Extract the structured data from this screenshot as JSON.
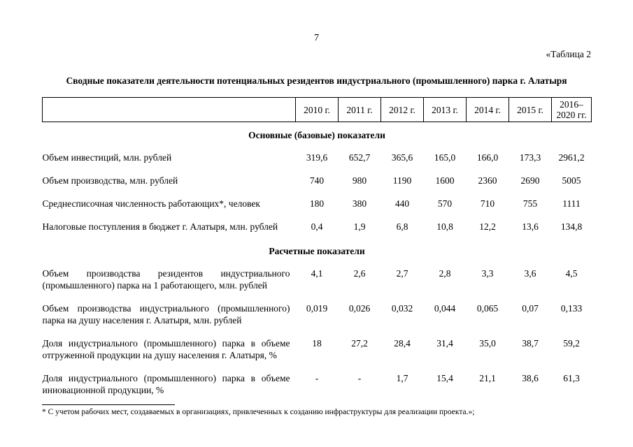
{
  "page": {
    "number": "7",
    "table_ref": "«Таблица 2",
    "title": "Сводные показатели деятельности потенциальных резидентов индустриального (промышленного) парка г. Алатыря",
    "footnote": "* С учетом рабочих мест, создаваемых в организациях, привлеченных к созданию инфраструктуры для реализации проекта.»;"
  },
  "table": {
    "columns": [
      "2010 г.",
      "2011 г.",
      "2012 г.",
      "2013 г.",
      "2014 г.",
      "2015 г.",
      "2016–\n2020 гг."
    ],
    "sections": [
      {
        "header": "Основные (базовые) показатели",
        "rows": [
          {
            "label": "Объем инвестиций, млн. рублей",
            "values": [
              "319,6",
              "652,7",
              "365,6",
              "165,0",
              "166,0",
              "173,3",
              "2961,2"
            ]
          },
          {
            "label": "Объем производства, млн. рублей",
            "values": [
              "740",
              "980",
              "1190",
              "1600",
              "2360",
              "2690",
              "5005"
            ]
          },
          {
            "label": "Среднесписочная численность работающих*, человек",
            "values": [
              "180",
              "380",
              "440",
              "570",
              "710",
              "755",
              "1111"
            ]
          },
          {
            "label": "Налоговые поступления в бюджет г. Алатыря, млн. рублей",
            "values": [
              "0,4",
              "1,9",
              "6,8",
              "10,8",
              "12,2",
              "13,6",
              "134,8"
            ]
          }
        ]
      },
      {
        "header": "Расчетные показатели",
        "rows": [
          {
            "label": "Объем производства резидентов индустриального (промышленного) парка на 1 работающего, млн. рублей",
            "values": [
              "4,1",
              "2,6",
              "2,7",
              "2,8",
              "3,3",
              "3,6",
              "4,5"
            ]
          },
          {
            "label": "Объем производства индустриального (промышленного) парка на душу населения г. Алатыря, млн. рублей",
            "values": [
              "0,019",
              "0,026",
              "0,032",
              "0,044",
              "0,065",
              "0,07",
              "0,133"
            ]
          },
          {
            "label": "Доля индустриального (промышленного) парка в объеме отгруженной продукции на душу населения г. Алатыря, %",
            "values": [
              "18",
              "27,2",
              "28,4",
              "31,4",
              "35,0",
              "38,7",
              "59,2"
            ]
          },
          {
            "label": "Доля индустриального (промышленного) парка в объеме инновационной продукции, %",
            "values": [
              "-",
              "-",
              "1,7",
              "15,4",
              "21,1",
              "38,6",
              "61,3"
            ]
          }
        ]
      }
    ]
  }
}
